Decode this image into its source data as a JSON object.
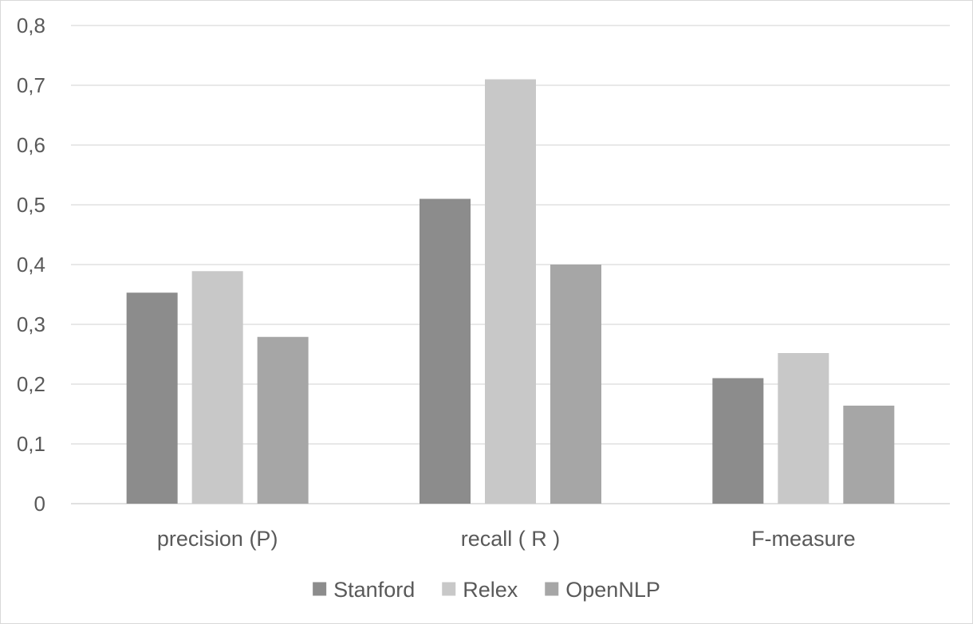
{
  "chart_data": {
    "type": "bar",
    "categories": [
      "precision (P)",
      "recall ( R )",
      "F-measure"
    ],
    "series": [
      {
        "name": "Stanford",
        "values": [
          0.353,
          0.51,
          0.21
        ],
        "color": "#8c8c8c"
      },
      {
        "name": "Relex",
        "values": [
          0.389,
          0.71,
          0.252
        ],
        "color": "#c8c8c8"
      },
      {
        "name": "OpenNLP",
        "values": [
          0.279,
          0.4,
          0.164
        ],
        "color": "#a6a6a6"
      }
    ],
    "yticks": [
      "0",
      "0,1",
      "0,2",
      "0,3",
      "0,4",
      "0,5",
      "0,6",
      "0,7",
      "0,8"
    ],
    "ylim": [
      0,
      0.8
    ],
    "grid": true,
    "gridline_color": "#d9d9d9",
    "legend_position": "bottom"
  }
}
